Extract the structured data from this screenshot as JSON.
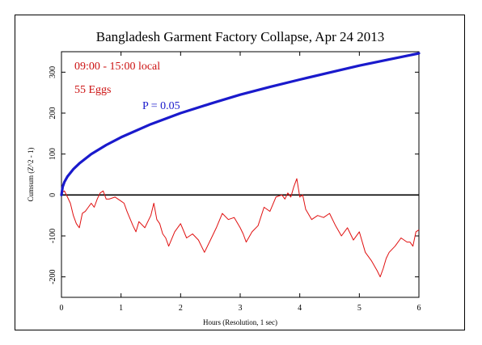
{
  "chart_data": {
    "type": "line",
    "title": "Bangladesh Garment Factory Collapse, Apr 24 2013",
    "xlabel": "Hours (Resolution, 1 sec)",
    "ylabel": "Cumsum (Z^2 - 1)",
    "xlim": [
      0,
      6
    ],
    "ylim": [
      -250,
      350
    ],
    "xticks": [
      "0",
      "1",
      "2",
      "3",
      "4",
      "5",
      "6"
    ],
    "yticks": [
      "-200",
      "-100",
      "0",
      "100",
      "200",
      "300"
    ],
    "annotations": {
      "time_window": "09:00 - 15:00 local",
      "eggs": "55 Eggs",
      "p_label": "P = 0.05"
    },
    "colors": {
      "cumsum": "#e01010",
      "envelope": "#1a1acc",
      "zero_line": "#000000",
      "text_red": "#cc1111",
      "text_blue": "#1a1acc"
    },
    "series": [
      {
        "role": "cumsum",
        "x": [
          0,
          0.05,
          0.1,
          0.15,
          0.2,
          0.25,
          0.3,
          0.35,
          0.4,
          0.45,
          0.5,
          0.55,
          0.6,
          0.65,
          0.7,
          0.75,
          0.8,
          0.9,
          1.0,
          1.05,
          1.1,
          1.2,
          1.25,
          1.3,
          1.4,
          1.5,
          1.55,
          1.6,
          1.65,
          1.7,
          1.75,
          1.8,
          1.9,
          2.0,
          2.1,
          2.2,
          2.3,
          2.4,
          2.5,
          2.6,
          2.7,
          2.8,
          2.9,
          3.0,
          3.05,
          3.1,
          3.2,
          3.3,
          3.4,
          3.5,
          3.6,
          3.7,
          3.75,
          3.8,
          3.85,
          3.9,
          3.95,
          4.0,
          4.05,
          4.1,
          4.2,
          4.3,
          4.4,
          4.5,
          4.6,
          4.7,
          4.8,
          4.9,
          5.0,
          5.1,
          5.2,
          5.3,
          5.35,
          5.4,
          5.45,
          5.5,
          5.6,
          5.7,
          5.8,
          5.85,
          5.9,
          5.95,
          6.0
        ],
        "y": [
          5,
          10,
          -5,
          -20,
          -50,
          -70,
          -80,
          -45,
          -40,
          -30,
          -20,
          -30,
          -10,
          5,
          10,
          -10,
          -10,
          -5,
          -15,
          -20,
          -40,
          -75,
          -90,
          -65,
          -80,
          -50,
          -20,
          -60,
          -70,
          -95,
          -105,
          -125,
          -90,
          -70,
          -105,
          -95,
          -110,
          -140,
          -110,
          -80,
          -45,
          -60,
          -55,
          -80,
          -95,
          -115,
          -90,
          -75,
          -30,
          -40,
          -5,
          0,
          -10,
          5,
          -5,
          20,
          40,
          -5,
          0,
          -35,
          -60,
          -50,
          -55,
          -45,
          -75,
          -100,
          -80,
          -110,
          -90,
          -140,
          -160,
          -185,
          -200,
          -180,
          -155,
          -140,
          -125,
          -105,
          -115,
          -115,
          -125,
          -90,
          -85
        ]
      },
      {
        "role": "envelope",
        "name": "P = 0.05",
        "x": [
          0,
          0.02,
          0.05,
          0.1,
          0.2,
          0.3,
          0.5,
          0.75,
          1.0,
          1.5,
          2.0,
          2.5,
          3.0,
          3.5,
          4.0,
          4.5,
          5.0,
          5.5,
          6.0
        ],
        "y": [
          0,
          20,
          32,
          45,
          63,
          77,
          100,
          122,
          141,
          173,
          200,
          223,
          245,
          264,
          282,
          299,
          316,
          331,
          346
        ]
      }
    ]
  }
}
